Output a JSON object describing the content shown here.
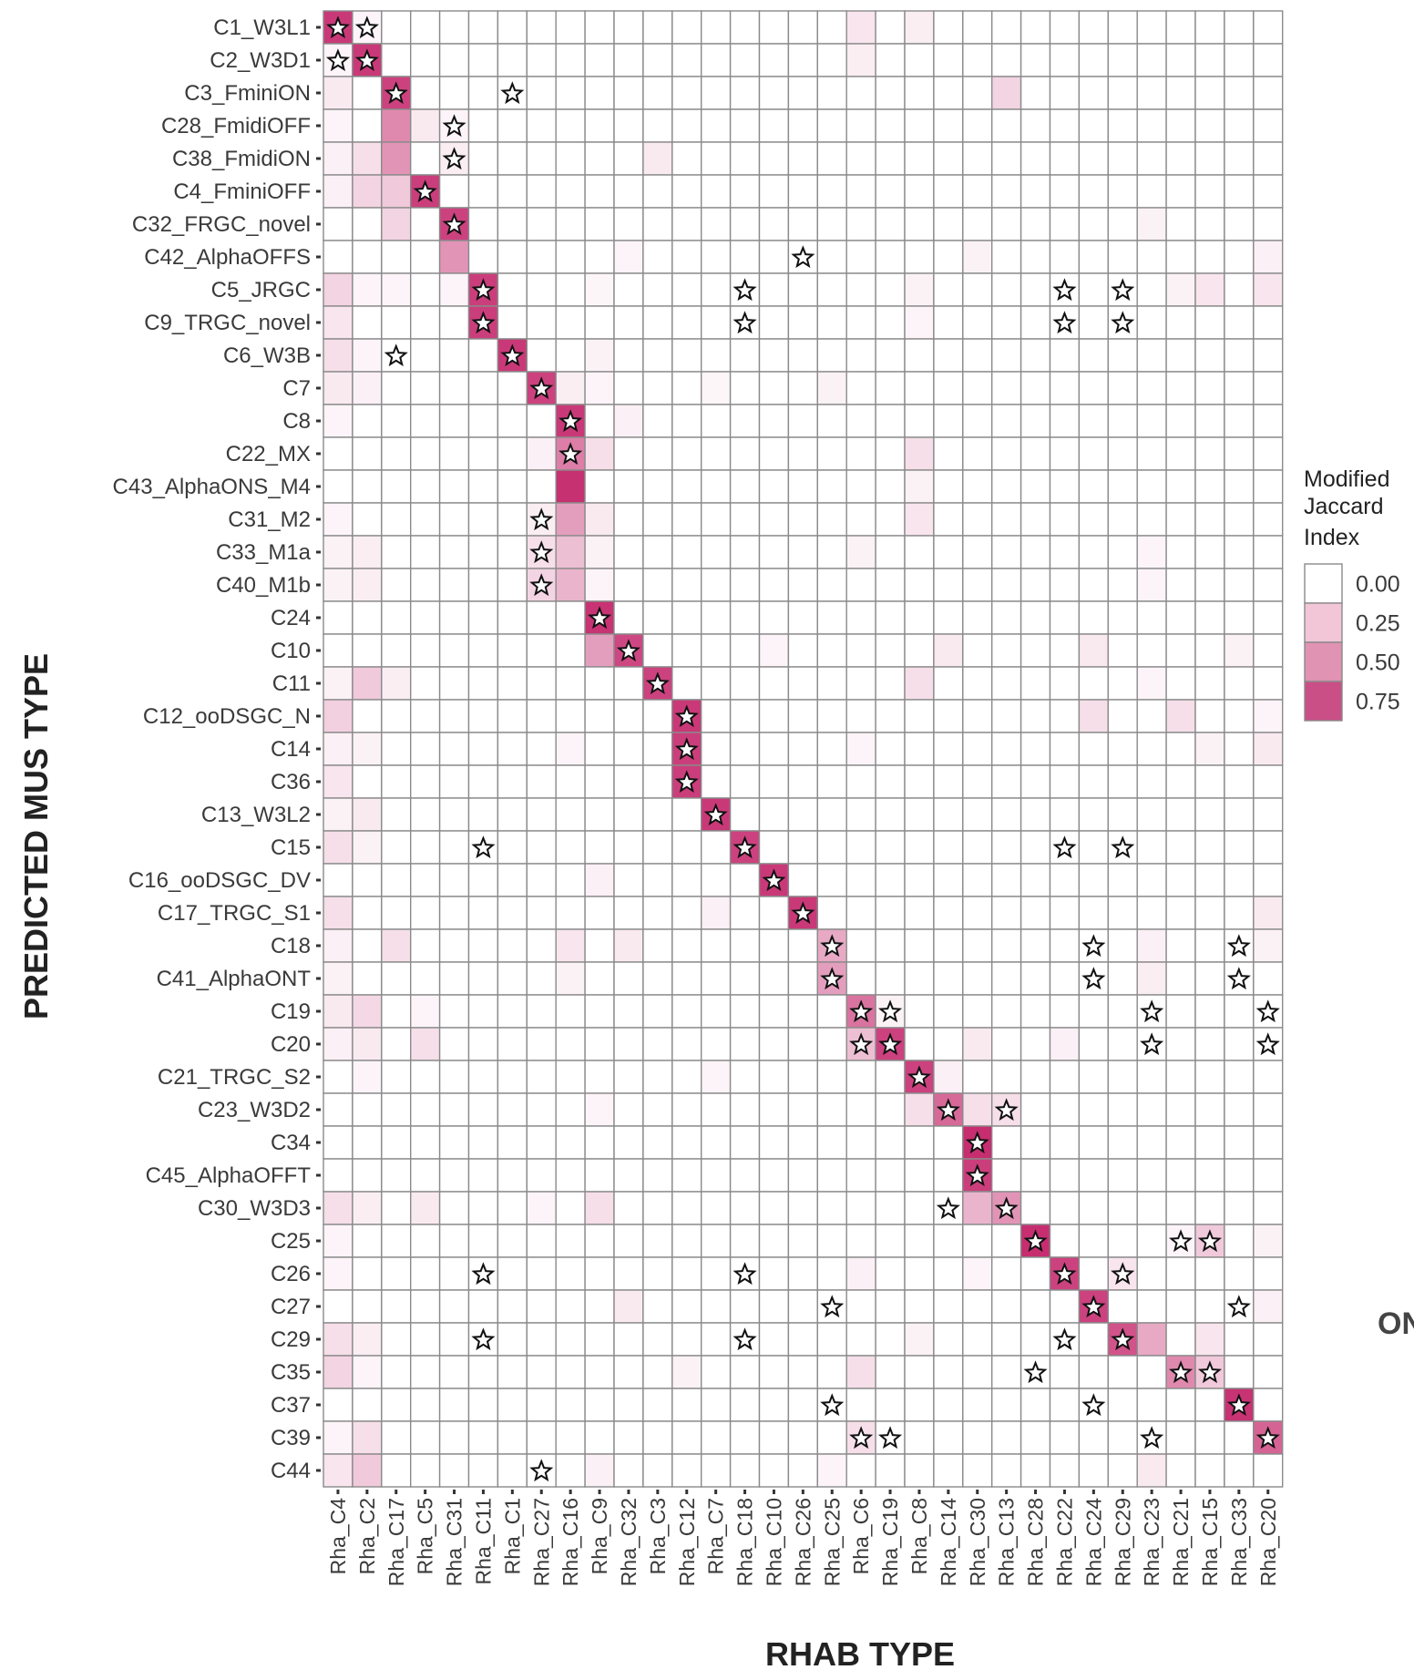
{
  "chart_data": {
    "type": "heatmap",
    "xlabel": "RHAB TYPE",
    "ylabel": "PREDICTED MUS TYPE",
    "x": [
      "Rha_C4",
      "Rha_C2",
      "Rha_C17",
      "Rha_C5",
      "Rha_C31",
      "Rha_C11",
      "Rha_C1",
      "Rha_C27",
      "Rha_C16",
      "Rha_C9",
      "Rha_C32",
      "Rha_C3",
      "Rha_C12",
      "Rha_C7",
      "Rha_C18",
      "Rha_C10",
      "Rha_C26",
      "Rha_C25",
      "Rha_C6",
      "Rha_C19",
      "Rha_C8",
      "Rha_C14",
      "Rha_C30",
      "Rha_C13",
      "Rha_C28",
      "Rha_C22",
      "Rha_C24",
      "Rha_C29",
      "Rha_C23",
      "Rha_C21",
      "Rha_C15",
      "Rha_C33",
      "Rha_C20"
    ],
    "y": [
      "C1_W3L1",
      "C2_W3D1",
      "C3_FminiON",
      "C28_FmidiOFF",
      "C38_FmidiON",
      "C4_FminiOFF",
      "C32_FRGC_novel",
      "C42_AlphaOFFS",
      "C5_JRGC",
      "C9_TRGC_novel",
      "C6_W3B",
      "C7",
      "C8",
      "C22_MX",
      "C43_AlphaONS_M4",
      "C31_M2",
      "C33_M1a",
      "C40_M1b",
      "C24",
      "C10",
      "C11",
      "C12_ooDSGC_N",
      "C14",
      "C36",
      "C13_W3L2",
      "C15",
      "C16_ooDSGC_DV",
      "C17_TRGC_S1",
      "C18",
      "C41_AlphaONT",
      "C19",
      "C20",
      "C21_TRGC_S2",
      "C23_W3D2",
      "C34",
      "C45_AlphaOFFT",
      "C30_W3D3",
      "C25",
      "C26",
      "C27",
      "C29",
      "C35",
      "C37",
      "C39",
      "C44"
    ],
    "cells": [
      [
        0,
        0,
        0.92
      ],
      [
        1,
        0,
        0.05
      ],
      [
        18,
        0,
        0.12
      ],
      [
        20,
        0,
        0.08
      ],
      [
        0,
        1,
        0.05
      ],
      [
        1,
        1,
        0.92
      ],
      [
        18,
        1,
        0.08
      ],
      [
        0,
        2,
        0.1
      ],
      [
        2,
        2,
        0.88
      ],
      [
        23,
        2,
        0.2
      ],
      [
        0,
        3,
        0.05
      ],
      [
        2,
        3,
        0.55
      ],
      [
        3,
        3,
        0.1
      ],
      [
        4,
        3,
        0.05
      ],
      [
        0,
        4,
        0.07
      ],
      [
        1,
        4,
        0.15
      ],
      [
        2,
        4,
        0.5
      ],
      [
        4,
        4,
        0.08
      ],
      [
        11,
        4,
        0.1
      ],
      [
        0,
        5,
        0.07
      ],
      [
        1,
        5,
        0.2
      ],
      [
        2,
        5,
        0.25
      ],
      [
        3,
        5,
        0.9
      ],
      [
        2,
        6,
        0.2
      ],
      [
        4,
        6,
        0.88
      ],
      [
        28,
        6,
        0.06
      ],
      [
        4,
        7,
        0.5
      ],
      [
        10,
        7,
        0.05
      ],
      [
        22,
        7,
        0.06
      ],
      [
        32,
        7,
        0.07
      ],
      [
        0,
        8,
        0.2
      ],
      [
        1,
        8,
        0.05
      ],
      [
        2,
        8,
        0.05
      ],
      [
        4,
        8,
        0.05
      ],
      [
        5,
        8,
        0.9
      ],
      [
        9,
        8,
        0.04
      ],
      [
        20,
        8,
        0.06
      ],
      [
        29,
        8,
        0.06
      ],
      [
        30,
        8,
        0.12
      ],
      [
        32,
        8,
        0.12
      ],
      [
        0,
        9,
        0.12
      ],
      [
        5,
        9,
        0.9
      ],
      [
        20,
        9,
        0.05
      ],
      [
        0,
        10,
        0.15
      ],
      [
        1,
        10,
        0.05
      ],
      [
        6,
        10,
        0.92
      ],
      [
        9,
        10,
        0.06
      ],
      [
        0,
        11,
        0.1
      ],
      [
        1,
        11,
        0.07
      ],
      [
        7,
        11,
        0.88
      ],
      [
        8,
        11,
        0.08
      ],
      [
        9,
        11,
        0.05
      ],
      [
        13,
        11,
        0.04
      ],
      [
        17,
        11,
        0.06
      ],
      [
        0,
        12,
        0.05
      ],
      [
        8,
        12,
        0.92
      ],
      [
        10,
        12,
        0.07
      ],
      [
        7,
        13,
        0.07
      ],
      [
        8,
        13,
        0.6
      ],
      [
        9,
        13,
        0.15
      ],
      [
        20,
        13,
        0.15
      ],
      [
        8,
        14,
        0.96
      ],
      [
        20,
        14,
        0.06
      ],
      [
        0,
        15,
        0.05
      ],
      [
        7,
        15,
        0.08
      ],
      [
        8,
        15,
        0.45
      ],
      [
        9,
        15,
        0.1
      ],
      [
        20,
        15,
        0.12
      ],
      [
        0,
        16,
        0.06
      ],
      [
        1,
        16,
        0.08
      ],
      [
        7,
        16,
        0.15
      ],
      [
        8,
        16,
        0.3
      ],
      [
        9,
        16,
        0.06
      ],
      [
        18,
        16,
        0.06
      ],
      [
        28,
        16,
        0.05
      ],
      [
        0,
        17,
        0.06
      ],
      [
        1,
        17,
        0.08
      ],
      [
        7,
        17,
        0.2
      ],
      [
        8,
        17,
        0.35
      ],
      [
        9,
        17,
        0.05
      ],
      [
        28,
        17,
        0.05
      ],
      [
        9,
        18,
        0.95
      ],
      [
        9,
        19,
        0.45
      ],
      [
        10,
        19,
        0.85
      ],
      [
        15,
        19,
        0.05
      ],
      [
        21,
        19,
        0.1
      ],
      [
        26,
        19,
        0.1
      ],
      [
        31,
        19,
        0.06
      ],
      [
        0,
        20,
        0.06
      ],
      [
        1,
        20,
        0.25
      ],
      [
        2,
        20,
        0.08
      ],
      [
        11,
        20,
        0.88
      ],
      [
        20,
        20,
        0.15
      ],
      [
        28,
        20,
        0.05
      ],
      [
        0,
        21,
        0.22
      ],
      [
        12,
        21,
        0.92
      ],
      [
        26,
        21,
        0.15
      ],
      [
        29,
        21,
        0.15
      ],
      [
        32,
        21,
        0.05
      ],
      [
        0,
        22,
        0.07
      ],
      [
        1,
        22,
        0.06
      ],
      [
        8,
        22,
        0.05
      ],
      [
        12,
        22,
        0.9
      ],
      [
        18,
        22,
        0.05
      ],
      [
        30,
        22,
        0.06
      ],
      [
        32,
        22,
        0.1
      ],
      [
        0,
        23,
        0.12
      ],
      [
        12,
        23,
        0.9
      ],
      [
        0,
        24,
        0.06
      ],
      [
        1,
        24,
        0.1
      ],
      [
        13,
        24,
        0.92
      ],
      [
        0,
        25,
        0.15
      ],
      [
        1,
        25,
        0.06
      ],
      [
        14,
        25,
        0.88
      ],
      [
        9,
        26,
        0.07
      ],
      [
        15,
        26,
        0.92
      ],
      [
        0,
        27,
        0.15
      ],
      [
        13,
        27,
        0.07
      ],
      [
        16,
        27,
        0.92
      ],
      [
        32,
        27,
        0.1
      ],
      [
        0,
        28,
        0.07
      ],
      [
        2,
        28,
        0.15
      ],
      [
        8,
        28,
        0.12
      ],
      [
        10,
        28,
        0.1
      ],
      [
        17,
        28,
        0.4
      ],
      [
        28,
        28,
        0.07
      ],
      [
        32,
        28,
        0.06
      ],
      [
        0,
        29,
        0.06
      ],
      [
        8,
        29,
        0.06
      ],
      [
        17,
        29,
        0.45
      ],
      [
        28,
        29,
        0.08
      ],
      [
        0,
        30,
        0.1
      ],
      [
        1,
        30,
        0.18
      ],
      [
        3,
        30,
        0.05
      ],
      [
        18,
        30,
        0.65
      ],
      [
        19,
        30,
        0.06
      ],
      [
        0,
        31,
        0.07
      ],
      [
        1,
        31,
        0.1
      ],
      [
        3,
        31,
        0.15
      ],
      [
        18,
        31,
        0.3
      ],
      [
        19,
        31,
        0.88
      ],
      [
        22,
        31,
        0.1
      ],
      [
        25,
        31,
        0.07
      ],
      [
        1,
        32,
        0.05
      ],
      [
        13,
        32,
        0.05
      ],
      [
        20,
        32,
        0.88
      ],
      [
        21,
        32,
        0.07
      ],
      [
        9,
        33,
        0.05
      ],
      [
        20,
        33,
        0.15
      ],
      [
        21,
        33,
        0.7
      ],
      [
        22,
        33,
        0.15
      ],
      [
        23,
        33,
        0.15
      ],
      [
        22,
        34,
        0.97
      ],
      [
        22,
        35,
        0.9
      ],
      [
        0,
        36,
        0.15
      ],
      [
        1,
        36,
        0.08
      ],
      [
        3,
        36,
        0.1
      ],
      [
        7,
        36,
        0.05
      ],
      [
        9,
        36,
        0.15
      ],
      [
        22,
        36,
        0.35
      ],
      [
        23,
        36,
        0.5
      ],
      [
        0,
        37,
        0.05
      ],
      [
        24,
        37,
        0.97
      ],
      [
        29,
        37,
        0.05
      ],
      [
        30,
        37,
        0.25
      ],
      [
        32,
        37,
        0.06
      ],
      [
        0,
        38,
        0.05
      ],
      [
        18,
        38,
        0.07
      ],
      [
        22,
        38,
        0.05
      ],
      [
        25,
        38,
        0.88
      ],
      [
        27,
        38,
        0.12
      ],
      [
        10,
        39,
        0.1
      ],
      [
        26,
        39,
        0.88
      ],
      [
        32,
        39,
        0.07
      ],
      [
        0,
        40,
        0.15
      ],
      [
        1,
        40,
        0.08
      ],
      [
        20,
        40,
        0.06
      ],
      [
        27,
        40,
        0.8
      ],
      [
        28,
        40,
        0.4
      ],
      [
        30,
        40,
        0.12
      ],
      [
        0,
        41,
        0.2
      ],
      [
        1,
        41,
        0.05
      ],
      [
        12,
        41,
        0.06
      ],
      [
        18,
        41,
        0.15
      ],
      [
        29,
        41,
        0.55
      ],
      [
        30,
        41,
        0.25
      ],
      [
        31,
        42,
        0.95
      ],
      [
        0,
        43,
        0.05
      ],
      [
        1,
        43,
        0.15
      ],
      [
        18,
        43,
        0.15
      ],
      [
        32,
        43,
        0.72
      ],
      [
        0,
        44,
        0.12
      ],
      [
        1,
        44,
        0.25
      ],
      [
        9,
        44,
        0.07
      ],
      [
        17,
        44,
        0.05
      ],
      [
        28,
        44,
        0.1
      ]
    ],
    "stars": [
      [
        0,
        0
      ],
      [
        1,
        0
      ],
      [
        0,
        1
      ],
      [
        1,
        1
      ],
      [
        2,
        2
      ],
      [
        6,
        2
      ],
      [
        4,
        3
      ],
      [
        4,
        4
      ],
      [
        3,
        5
      ],
      [
        4,
        6
      ],
      [
        16,
        7
      ],
      [
        5,
        8
      ],
      [
        14,
        8
      ],
      [
        25,
        8
      ],
      [
        27,
        8
      ],
      [
        5,
        9
      ],
      [
        14,
        9
      ],
      [
        25,
        9
      ],
      [
        27,
        9
      ],
      [
        2,
        10
      ],
      [
        6,
        10
      ],
      [
        7,
        11
      ],
      [
        8,
        12
      ],
      [
        8,
        13
      ],
      [
        7,
        15
      ],
      [
        7,
        16
      ],
      [
        7,
        17
      ],
      [
        9,
        18
      ],
      [
        10,
        19
      ],
      [
        11,
        20
      ],
      [
        12,
        21
      ],
      [
        12,
        22
      ],
      [
        12,
        23
      ],
      [
        13,
        24
      ],
      [
        5,
        25
      ],
      [
        14,
        25
      ],
      [
        25,
        25
      ],
      [
        27,
        25
      ],
      [
        15,
        26
      ],
      [
        16,
        27
      ],
      [
        17,
        28
      ],
      [
        26,
        28
      ],
      [
        31,
        28
      ],
      [
        17,
        29
      ],
      [
        26,
        29
      ],
      [
        31,
        29
      ],
      [
        18,
        30
      ],
      [
        19,
        30
      ],
      [
        28,
        30
      ],
      [
        32,
        30
      ],
      [
        18,
        31
      ],
      [
        19,
        31
      ],
      [
        28,
        31
      ],
      [
        32,
        31
      ],
      [
        20,
        32
      ],
      [
        21,
        33
      ],
      [
        23,
        33
      ],
      [
        22,
        34
      ],
      [
        22,
        35
      ],
      [
        21,
        36
      ],
      [
        23,
        36
      ],
      [
        24,
        37
      ],
      [
        29,
        37
      ],
      [
        30,
        37
      ],
      [
        5,
        38
      ],
      [
        14,
        38
      ],
      [
        25,
        38
      ],
      [
        27,
        38
      ],
      [
        17,
        39
      ],
      [
        26,
        39
      ],
      [
        31,
        39
      ],
      [
        5,
        40
      ],
      [
        14,
        40
      ],
      [
        25,
        40
      ],
      [
        27,
        40
      ],
      [
        24,
        41
      ],
      [
        29,
        41
      ],
      [
        30,
        41
      ],
      [
        17,
        42
      ],
      [
        26,
        42
      ],
      [
        31,
        42
      ],
      [
        18,
        43
      ],
      [
        19,
        43
      ],
      [
        28,
        43
      ],
      [
        32,
        43
      ],
      [
        7,
        44
      ]
    ],
    "legend": {
      "title": [
        "Modified",
        "Jaccard",
        "Index"
      ],
      "breaks": [
        "0.00",
        "0.25",
        "0.50",
        "0.75"
      ],
      "colors": [
        "#ffffff",
        "#f2c6d6",
        "#e093b3",
        "#cb4f87"
      ]
    },
    "color_scale": [
      "#ffffff",
      "#c4286c"
    ],
    "value_range": [
      0,
      1
    ]
  },
  "edge_text": "ON"
}
